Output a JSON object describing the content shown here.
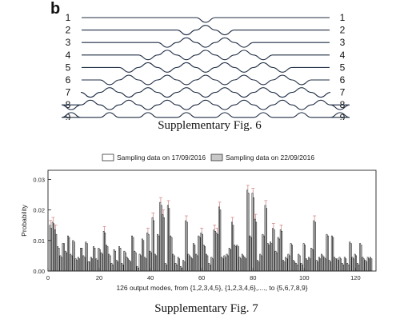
{
  "panel_label": "b",
  "network": {
    "ports": [
      "1",
      "2",
      "3",
      "4",
      "5",
      "6",
      "7",
      "8",
      "9"
    ],
    "modes": 9
  },
  "fig6_caption": "Supplementary Fig. 6",
  "fig7_caption": "Supplementary Fig. 7",
  "chart_data": {
    "type": "bar",
    "legend_position": "top",
    "xlabel": "126 output modes, from {1,2,3,4,5}, {1,2,3,4,6},...., to {5,6,7,8,9}",
    "ylabel": "Probability",
    "xlim": [
      0,
      128
    ],
    "ylim": [
      0,
      0.033
    ],
    "xticks": [
      0,
      20,
      40,
      60,
      80,
      100,
      120
    ],
    "yticks": [
      0.0,
      0.01,
      0.02,
      0.03
    ],
    "ytick_labels": [
      "0.00",
      "0.01",
      "0.02",
      "0.03"
    ],
    "series": [
      {
        "name": "Sampling data on 17/09/2016",
        "color": "#ffffff",
        "values": [
          0.015,
          0.016,
          0.0135,
          0.008,
          0.005,
          0.009,
          0.0065,
          0.0115,
          0.0055,
          0.01,
          0.004,
          0.0045,
          0.0075,
          0.005,
          0.0095,
          0.003,
          0.0045,
          0.008,
          0.004,
          0.0075,
          0.006,
          0.013,
          0.0085,
          0.0055,
          0.0025,
          0.007,
          0.0035,
          0.008,
          0.0025,
          0.0065,
          0.0045,
          0.0035,
          0.0115,
          0.0065,
          0.0015,
          0.0055,
          0.0105,
          0.0045,
          0.0125,
          0.0065,
          0.0175,
          0.0055,
          0.012,
          0.0225,
          0.0185,
          0.0025,
          0.0215,
          0.0115,
          0.0055,
          0.0025,
          0.0045,
          0.0015,
          0.0035,
          0.0165,
          0.0055,
          0.0045,
          0.009,
          0.0055,
          0.0115,
          0.0125,
          0.0085,
          0.0055,
          0.0025,
          0.0045,
          0.0135,
          0.0125,
          0.021,
          0.0045,
          0.005,
          0.0055,
          0.0075,
          0.016,
          0.0085,
          0.0085,
          0.0045,
          0.0055,
          0.0045,
          0.0265,
          0.0115,
          0.0255,
          0.017,
          0.0035,
          0.0055,
          0.012,
          0.0215,
          0.009,
          0.0095,
          0.014,
          0.0065,
          0.011,
          0.0135,
          0.0035,
          0.0045,
          0.0055,
          0.009,
          0.0035,
          0.0025,
          0.0055,
          0.0025,
          0.009,
          0.004,
          0.0045,
          0.0075,
          0.0165,
          0.0035,
          0.0045,
          0.0055,
          0.0045,
          0.012,
          0.0035,
          0.0115,
          0.0045,
          0.004,
          0.0045,
          0.0025,
          0.0045,
          0.0025,
          0.0095,
          0.0045,
          0.0055,
          0.0025,
          0.009,
          0.0045,
          0.0035,
          0.0045,
          0.0045
        ]
      },
      {
        "name": "Sampling data on 22/09/2016",
        "color": "#c8c8c8",
        "values": [
          0.014,
          0.0155,
          0.012,
          0.0075,
          0.0045,
          0.009,
          0.006,
          0.011,
          0.005,
          0.0095,
          0.0035,
          0.004,
          0.0075,
          0.0045,
          0.009,
          0.003,
          0.004,
          0.0075,
          0.0035,
          0.007,
          0.0055,
          0.0125,
          0.008,
          0.005,
          0.002,
          0.0065,
          0.003,
          0.0075,
          0.002,
          0.006,
          0.004,
          0.003,
          0.011,
          0.006,
          0.001,
          0.005,
          0.01,
          0.004,
          0.012,
          0.006,
          0.0165,
          0.005,
          0.0115,
          0.0215,
          0.0175,
          0.002,
          0.0205,
          0.011,
          0.005,
          0.002,
          0.004,
          0.001,
          0.003,
          0.016,
          0.005,
          0.004,
          0.0085,
          0.005,
          0.011,
          0.012,
          0.008,
          0.005,
          0.002,
          0.004,
          0.013,
          0.012,
          0.02,
          0.004,
          0.0045,
          0.005,
          0.007,
          0.015,
          0.008,
          0.008,
          0.004,
          0.005,
          0.004,
          0.0255,
          0.011,
          0.024,
          0.016,
          0.003,
          0.005,
          0.0115,
          0.0205,
          0.0085,
          0.009,
          0.0135,
          0.006,
          0.0105,
          0.013,
          0.003,
          0.004,
          0.005,
          0.0085,
          0.003,
          0.002,
          0.005,
          0.002,
          0.0085,
          0.0035,
          0.004,
          0.007,
          0.016,
          0.003,
          0.004,
          0.005,
          0.004,
          0.0115,
          0.003,
          0.011,
          0.004,
          0.0035,
          0.004,
          0.002,
          0.004,
          0.002,
          0.009,
          0.004,
          0.005,
          0.002,
          0.0085,
          0.004,
          0.003,
          0.004,
          0.004
        ]
      }
    ]
  }
}
